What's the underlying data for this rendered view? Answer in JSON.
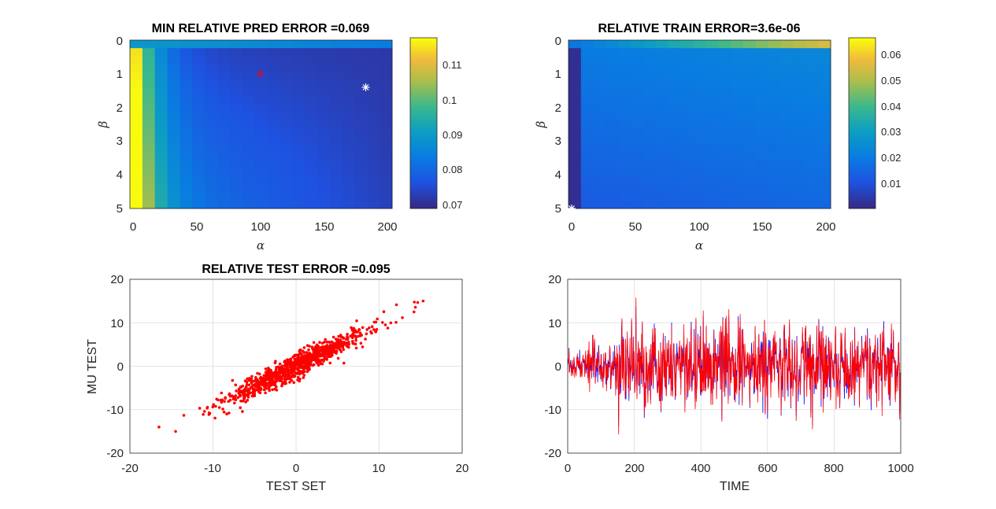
{
  "chart_data": [
    {
      "type": "heatmap",
      "title": "MIN RELATIVE PRED ERROR =0.069",
      "xlabel": "α",
      "ylabel": "β",
      "xlim": [
        0,
        200
      ],
      "ylim": [
        0,
        5
      ],
      "y_reversed": true,
      "xticks": [
        "0",
        "50",
        "100",
        "150",
        "200"
      ],
      "yticks": [
        "0",
        "1",
        "2",
        "3",
        "4",
        "5"
      ],
      "colorbar": {
        "range": [
          0.069,
          0.117
        ],
        "ticks": [
          "0.07",
          "0.08",
          "0.09",
          "0.1",
          "0.11"
        ]
      },
      "colormap": "parula",
      "markers": [
        {
          "symbol": "+",
          "color": "#ff0000",
          "alpha": 100,
          "beta": 1.0
        },
        {
          "symbol": "*",
          "color": "#ffffff",
          "alpha": 183,
          "beta": 1.4
        }
      ],
      "grid": false
    },
    {
      "type": "heatmap",
      "title": "RELATIVE TRAIN ERROR=3.6e-06",
      "xlabel": "α",
      "ylabel": "β",
      "xlim": [
        0,
        200
      ],
      "ylim": [
        0,
        5
      ],
      "y_reversed": true,
      "xticks": [
        "0",
        "50",
        "100",
        "150",
        "200"
      ],
      "yticks": [
        "0",
        "1",
        "2",
        "3",
        "4",
        "5"
      ],
      "colorbar": {
        "range": [
          0.0,
          0.066
        ],
        "ticks": [
          "0.01",
          "0.02",
          "0.03",
          "0.04",
          "0.05",
          "0.06"
        ]
      },
      "colormap": "parula",
      "markers": [
        {
          "symbol": "*",
          "color": "#ffffff",
          "alpha": 0,
          "beta": 5.0
        }
      ],
      "grid": false
    },
    {
      "type": "scatter",
      "title": "RELATIVE TEST ERROR =0.095",
      "xlabel": "TEST SET",
      "ylabel": "MU TEST",
      "xlim": [
        -20,
        20
      ],
      "ylim": [
        -20,
        20
      ],
      "xticks": [
        "-20",
        "-10",
        "0",
        "10",
        "20"
      ],
      "yticks": [
        "-20",
        "-10",
        "0",
        "10",
        "20"
      ],
      "color": "#ff0000",
      "n_points": 1000,
      "trend": {
        "slope": 0.95,
        "intercept": 0
      },
      "extremes": [
        {
          "x": -16.5,
          "y": -14
        },
        {
          "x": -14.5,
          "y": -15
        },
        {
          "x": 15.3,
          "y": 15
        },
        {
          "x": 14.2,
          "y": 12.5
        }
      ],
      "grid": true
    },
    {
      "type": "line",
      "title": "",
      "xlabel": "TIME",
      "ylabel": "",
      "xlim": [
        0,
        1000
      ],
      "ylim": [
        -20,
        20
      ],
      "xticks": [
        "0",
        "200",
        "400",
        "600",
        "800",
        "1000"
      ],
      "yticks": [
        "-20",
        "-10",
        "0",
        "10",
        "20"
      ],
      "series": [
        {
          "color": "#0000ff",
          "n": 1000
        },
        {
          "color": "#ff0000",
          "n": 1000
        }
      ],
      "range_observed": [
        -16,
        15
      ],
      "grid": true
    }
  ]
}
